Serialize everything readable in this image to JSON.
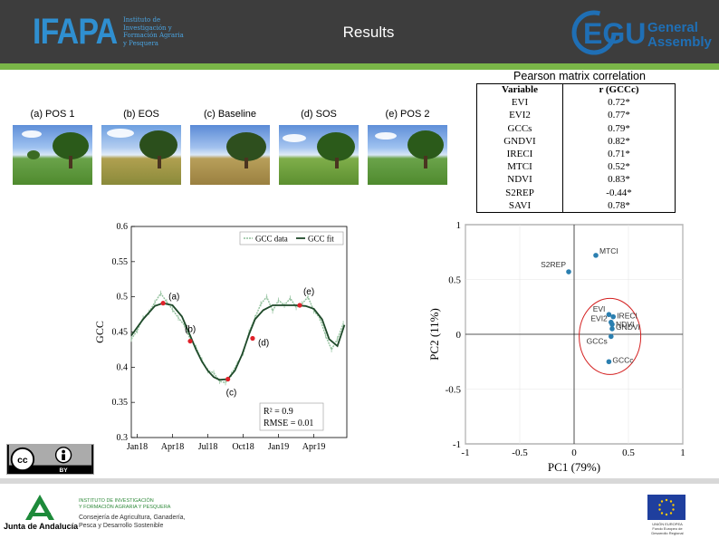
{
  "header": {
    "ifapa_logo_text": "IFAPA",
    "ifapa_subtitle": "Instituto de\nInvestigación y\nFormación Agraria\ny Pesquera",
    "title": "Results",
    "egu_logo_text": "EGU",
    "egu_logo_line1": "General",
    "egu_logo_line2": "Assembly",
    "colors": {
      "background": "#3d3d3d",
      "accent_bar": "#7ab648",
      "ifapa_blue": "#2f8fd0",
      "egu_blue": "#1f6fb5"
    }
  },
  "photos": [
    {
      "label": "(a) POS 1"
    },
    {
      "label": "(b) EOS"
    },
    {
      "label": "(c) Baseline"
    },
    {
      "label": "(d) SOS"
    },
    {
      "label": "(e) POS 2"
    }
  ],
  "correlation_table": {
    "title": "Pearson matrix correlation",
    "headers": [
      "Variable",
      "r (GCCc)"
    ],
    "rows": [
      [
        "EVI",
        "0.72*"
      ],
      [
        "EVI2",
        "0.77*"
      ],
      [
        "GCCs",
        "0.79*"
      ],
      [
        "GNDVI",
        "0.82*"
      ],
      [
        "IRECI",
        "0.71*"
      ],
      [
        "MTCI",
        "0.52*"
      ],
      [
        "NDVI",
        "0.83*"
      ],
      [
        "S2REP",
        "-0.44*"
      ],
      [
        "SAVI",
        "0.78*"
      ]
    ]
  },
  "chart_data": [
    {
      "type": "line",
      "ylabel": "GCC",
      "ylim": [
        0.3,
        0.6
      ],
      "yticks": [
        "0.3",
        "0.35",
        "0.4",
        "0.45",
        "0.5",
        "0.55",
        "0.6"
      ],
      "xticks": [
        "Jan18",
        "Apr18",
        "Jul18",
        "Oct18",
        "Jan19",
        "Apr19"
      ],
      "xtick_months": [
        0,
        3,
        6,
        9,
        12,
        15
      ],
      "xlim_months": [
        -0.5,
        17.8
      ],
      "legend": [
        "GCC data",
        "GCC fit"
      ],
      "legend_position": "top-right",
      "stats": [
        "R² = 0.9",
        "RMSE = 0.01"
      ],
      "series": [
        {
          "name": "GCC fit",
          "x_months": [
            -0.5,
            0.5,
            1.5,
            2.2,
            3,
            3.8,
            4.5,
            5,
            5.5,
            6,
            6.5,
            7,
            7.7,
            8.3,
            8.9,
            9.5,
            10,
            10.7,
            11.5,
            12.5,
            13.5,
            14.3,
            15,
            15.7,
            16.3,
            17,
            17.6
          ],
          "values": [
            0.445,
            0.468,
            0.487,
            0.491,
            0.488,
            0.472,
            0.445,
            0.425,
            0.408,
            0.395,
            0.386,
            0.382,
            0.383,
            0.395,
            0.418,
            0.447,
            0.468,
            0.481,
            0.488,
            0.488,
            0.488,
            0.487,
            0.483,
            0.468,
            0.44,
            0.43,
            0.46
          ]
        },
        {
          "name": "GCC data",
          "x_months": [
            -0.5,
            0,
            0.5,
            1,
            1.5,
            2,
            2.5,
            3,
            3.5,
            4,
            4.5,
            5,
            5.5,
            6,
            6.5,
            7,
            7.5,
            8,
            8.5,
            9,
            9.5,
            10,
            10.5,
            11,
            11.5,
            12,
            12.5,
            13,
            13.5,
            14,
            14.5,
            15,
            15.5,
            16,
            16.5,
            17,
            17.5
          ],
          "values": [
            0.44,
            0.452,
            0.47,
            0.478,
            0.492,
            0.505,
            0.493,
            0.482,
            0.47,
            0.46,
            0.44,
            0.428,
            0.41,
            0.395,
            0.392,
            0.38,
            0.378,
            0.39,
            0.405,
            0.42,
            0.45,
            0.47,
            0.49,
            0.5,
            0.48,
            0.495,
            0.488,
            0.498,
            0.485,
            0.49,
            0.5,
            0.48,
            0.47,
            0.445,
            0.425,
            0.44,
            0.462
          ]
        }
      ],
      "annotations": [
        {
          "label": "(a)",
          "x_month": 2.2,
          "y": 0.491
        },
        {
          "label": "(b)",
          "x_month": 4.5,
          "y": 0.437
        },
        {
          "label": "(c)",
          "x_month": 7.7,
          "y": 0.383
        },
        {
          "label": "(d)",
          "x_month": 9.8,
          "y": 0.441
        },
        {
          "label": "(e)",
          "x_month": 13.8,
          "y": 0.488
        }
      ]
    },
    {
      "type": "scatter",
      "xlabel": "PC1 (79%)",
      "ylabel": "PC2 (11%)",
      "xlim": [
        -1,
        1
      ],
      "ylim": [
        -1,
        1
      ],
      "xticks": [
        "-1",
        "-0.5",
        "0",
        "0.5",
        "1"
      ],
      "yticks": [
        "-1",
        "-0.5",
        "0",
        "0.5",
        "1"
      ],
      "grid": true,
      "points": [
        {
          "label": "MTCI",
          "x": 0.2,
          "y": 0.72
        },
        {
          "label": "S2REP",
          "x": -0.05,
          "y": 0.57
        },
        {
          "label": "EVI",
          "x": 0.32,
          "y": 0.18
        },
        {
          "label": "IRECI",
          "x": 0.36,
          "y": 0.16
        },
        {
          "label": "EVI2",
          "x": 0.34,
          "y": 0.11
        },
        {
          "label": "NDVI",
          "x": 0.35,
          "y": 0.09
        },
        {
          "label": "GNDVI",
          "x": 0.35,
          "y": 0.05
        },
        {
          "label": "GCCs",
          "x": 0.34,
          "y": -0.02
        },
        {
          "label": "GCCc",
          "x": 0.32,
          "y": -0.25
        }
      ],
      "highlight": "red circle around vegetation indices"
    }
  ],
  "license": {
    "badge_text": "cc",
    "by_text": "BY"
  },
  "footer": {
    "junta_name": "Junta de Andalucía",
    "institute": "INSTITUTO DE INVESTIGACIÓN\nY FORMACIÓN AGRARIA Y PESQUERA",
    "consejeria": "Consejería de Agricultura, Ganadería,\nPesca y Desarrollo Sostenible",
    "eu_caption": "UNIÓN EUROPEA\nFondo Europeo de Desarrollo Regional"
  }
}
